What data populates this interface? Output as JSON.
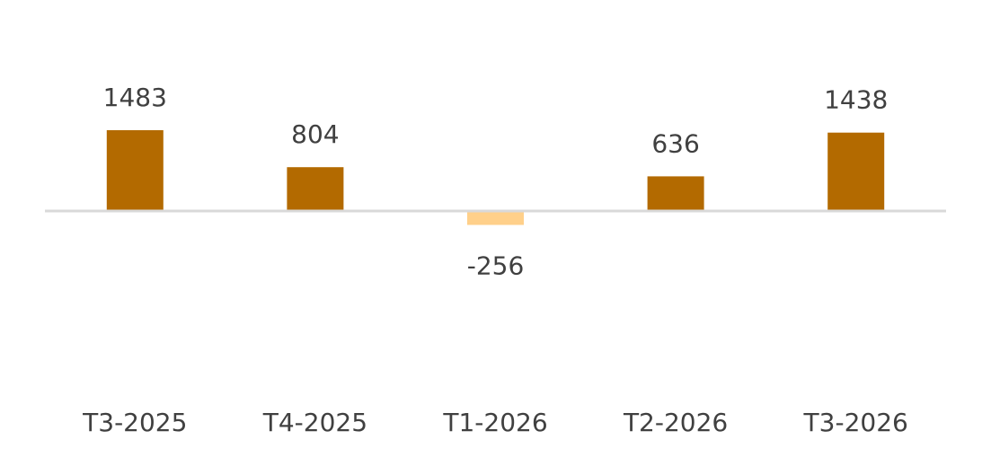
{
  "chart_data": {
    "type": "bar",
    "title": "",
    "xlabel": "",
    "ylabel": "",
    "categories": [
      "T3-2025",
      "T4-2025",
      "T1-2026",
      "T2-2026",
      "T3-2026"
    ],
    "values": [
      1483,
      804,
      -256,
      636,
      1438
    ],
    "ylim": [
      -2300,
      2000
    ],
    "grid": false,
    "legend": "none",
    "colors": {
      "positive": "#B36A00",
      "negative": "#FFD08A",
      "axis": "#D9D9D9",
      "text": "#404040"
    }
  }
}
